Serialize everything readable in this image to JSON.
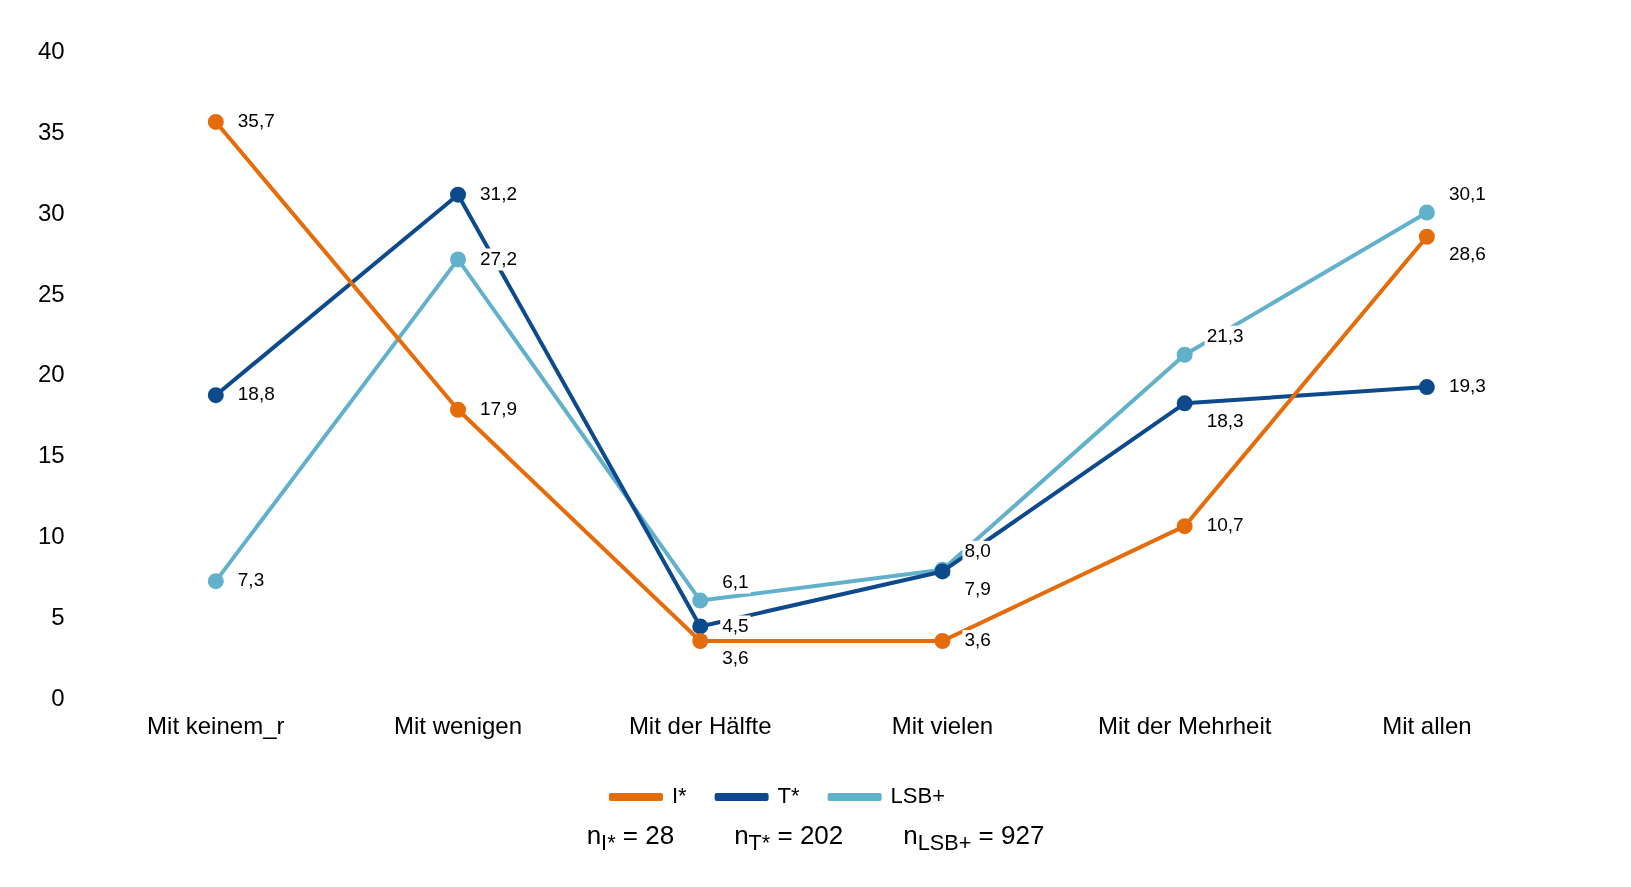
{
  "chart_data": {
    "type": "line",
    "categories": [
      "Mit keinem_r",
      "Mit wenigen",
      "Mit der Hälfte",
      "Mit vielen",
      "Mit der Mehrheit",
      "Mit allen"
    ],
    "series": [
      {
        "name": "I*",
        "color": "#e46c0a",
        "values": [
          35.7,
          17.9,
          3.6,
          3.6,
          10.7,
          28.6
        ],
        "value_labels": [
          "35,7",
          "17,9",
          "3,6",
          "3,6",
          "10,7",
          "28,6"
        ]
      },
      {
        "name": "T*",
        "color": "#0d4a8c",
        "values": [
          18.8,
          31.2,
          4.5,
          7.9,
          18.3,
          19.3
        ],
        "value_labels": [
          "18,8",
          "31,2",
          "4,5",
          "7,9",
          "18,3",
          "19,3"
        ]
      },
      {
        "name": "LSB+",
        "color": "#62b1cb",
        "values": [
          7.3,
          27.2,
          6.1,
          8.0,
          21.3,
          30.1
        ],
        "value_labels": [
          "7,3",
          "27,2",
          "6,1",
          "8,0",
          "21,3",
          "30,1"
        ]
      }
    ],
    "ylim": [
      0,
      40
    ],
    "yticks": [
      0,
      5,
      10,
      15,
      20,
      25,
      30,
      35,
      40
    ],
    "grid": false,
    "legend": "bottom",
    "marker": "circle",
    "line_style": "solid",
    "annotations": [
      "n$_{I*}$ = 28",
      "n$_{T*}$ = 202",
      "n$_{LSB+}$ = 927"
    ]
  }
}
